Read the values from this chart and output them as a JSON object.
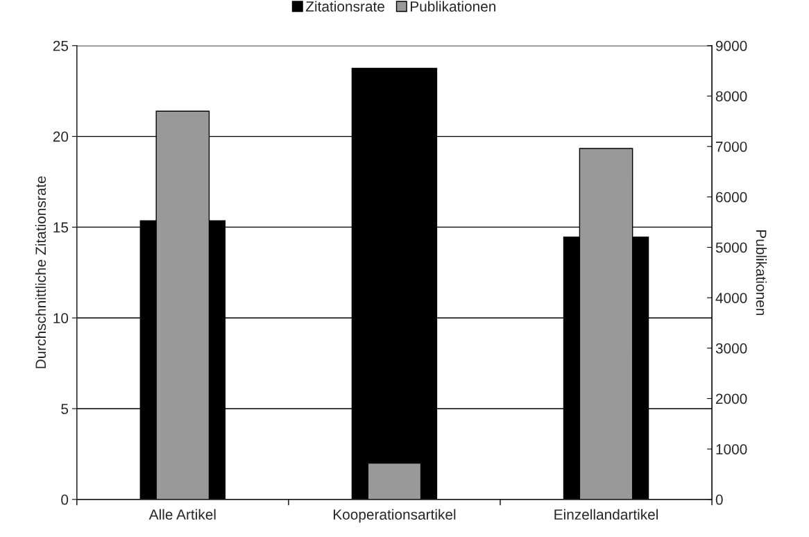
{
  "chart_data": {
    "type": "bar",
    "categories": [
      "Alle Artikel",
      "Kooperationsartikel",
      "Einzellandartikel"
    ],
    "series": [
      {
        "name": "Zitationsrate",
        "color": "#000000",
        "values": [
          15.35,
          23.75,
          14.45
        ]
      },
      {
        "name": "Publikationen",
        "color": "#999999",
        "values": [
          7700,
          720,
          6960
        ],
        "axis": "y2"
      }
    ],
    "ylabel": "Durchschnittliche Zitationsrate",
    "y2label": "Publikationen",
    "ylim": [
      0,
      25
    ],
    "yticks": [
      0,
      5,
      10,
      15,
      20,
      25
    ],
    "y2lim": [
      0,
      9000
    ],
    "y2ticks": [
      0,
      1000,
      2000,
      3000,
      4000,
      5000,
      6000,
      7000,
      8000,
      9000
    ],
    "grid": "y",
    "legend": "top"
  }
}
